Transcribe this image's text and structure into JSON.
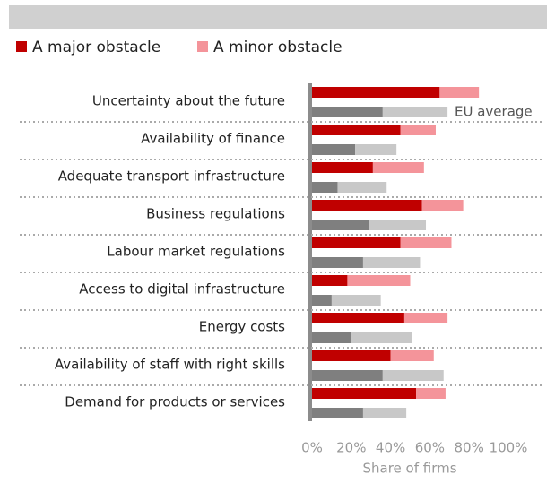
{
  "chart_data": {
    "type": "bar",
    "orientation": "horizontal",
    "stacked": true,
    "categories": [
      "Uncertainty about the future",
      "Availability of finance",
      "Adequate transport infrastructure",
      "Business regulations",
      "Labour market regulations",
      "Access to digital infrastructure",
      "Energy costs",
      "Availability of staff with right skills",
      "Demand for products or services"
    ],
    "series": [
      {
        "name": "A major obstacle",
        "color": "#c00000",
        "values": [
          65,
          45,
          31,
          56,
          45,
          18,
          47,
          40,
          53
        ]
      },
      {
        "name": "A minor obstacle",
        "color": "#f4949a",
        "values": [
          20,
          18,
          26,
          21,
          26,
          32,
          22,
          22,
          15
        ]
      }
    ],
    "eu_series": [
      {
        "color": "#7f7f7f",
        "values": [
          36,
          22,
          13,
          29,
          26,
          10,
          20,
          36,
          26
        ]
      },
      {
        "color": "#c8c8c8",
        "values": [
          33,
          21,
          25,
          29,
          29,
          25,
          31,
          31,
          22
        ]
      }
    ],
    "annotation": "EU average",
    "xlabel": "Share of firms",
    "xlim": [
      0,
      100
    ],
    "xticks": [
      {
        "value": 0,
        "label": "0%"
      },
      {
        "value": 20,
        "label": "20%"
      },
      {
        "value": 40,
        "label": "40%"
      },
      {
        "value": 60,
        "label": "60%"
      },
      {
        "value": 80,
        "label": "80%"
      },
      {
        "value": 100,
        "label": "100%"
      }
    ],
    "legend": "top-left"
  }
}
